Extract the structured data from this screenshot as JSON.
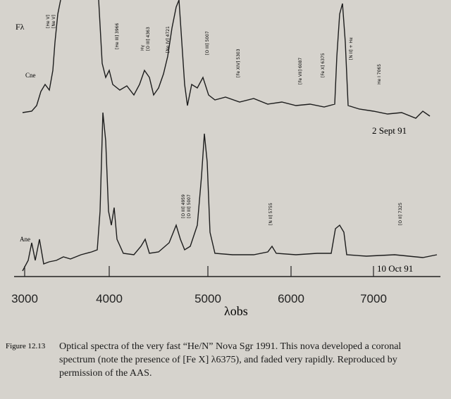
{
  "figure": {
    "y_label": "Fλ",
    "upper": {
      "offset_label": "Cne",
      "date": "2 Sept 91",
      "lines": [
        "[He V]",
        "[Ne V]",
        "[He III] 3966",
        "Hγ",
        "[O III] 4363",
        "[Ne IV] 4721",
        "[O III] 5007",
        "[Fe XIV] 5303",
        "[Fe VII] 6087",
        "[Fe X] 6375",
        "[N II] + Hα",
        "He I 7065"
      ]
    },
    "lower": {
      "offset_label": "Ane",
      "date": "10 Oct 91",
      "lines": [
        "[O III] 4959",
        "[O III] 5007",
        "[N II] 5755",
        "[O II] 7325"
      ]
    },
    "x_ticks": [
      "3000",
      "4000",
      "5000",
      "6000",
      "7000"
    ],
    "x_label": "λobs"
  },
  "caption": {
    "label": "Figure 12.13",
    "lines": [
      "Optical spectra of the very fast “He/N” Nova Sgr 1991. This nova developed a coronal",
      "spectrum (note the presence of [Fe X] λ6375), and faded very rapidly. Reproduced by",
      "permission of the AAS."
    ]
  }
}
